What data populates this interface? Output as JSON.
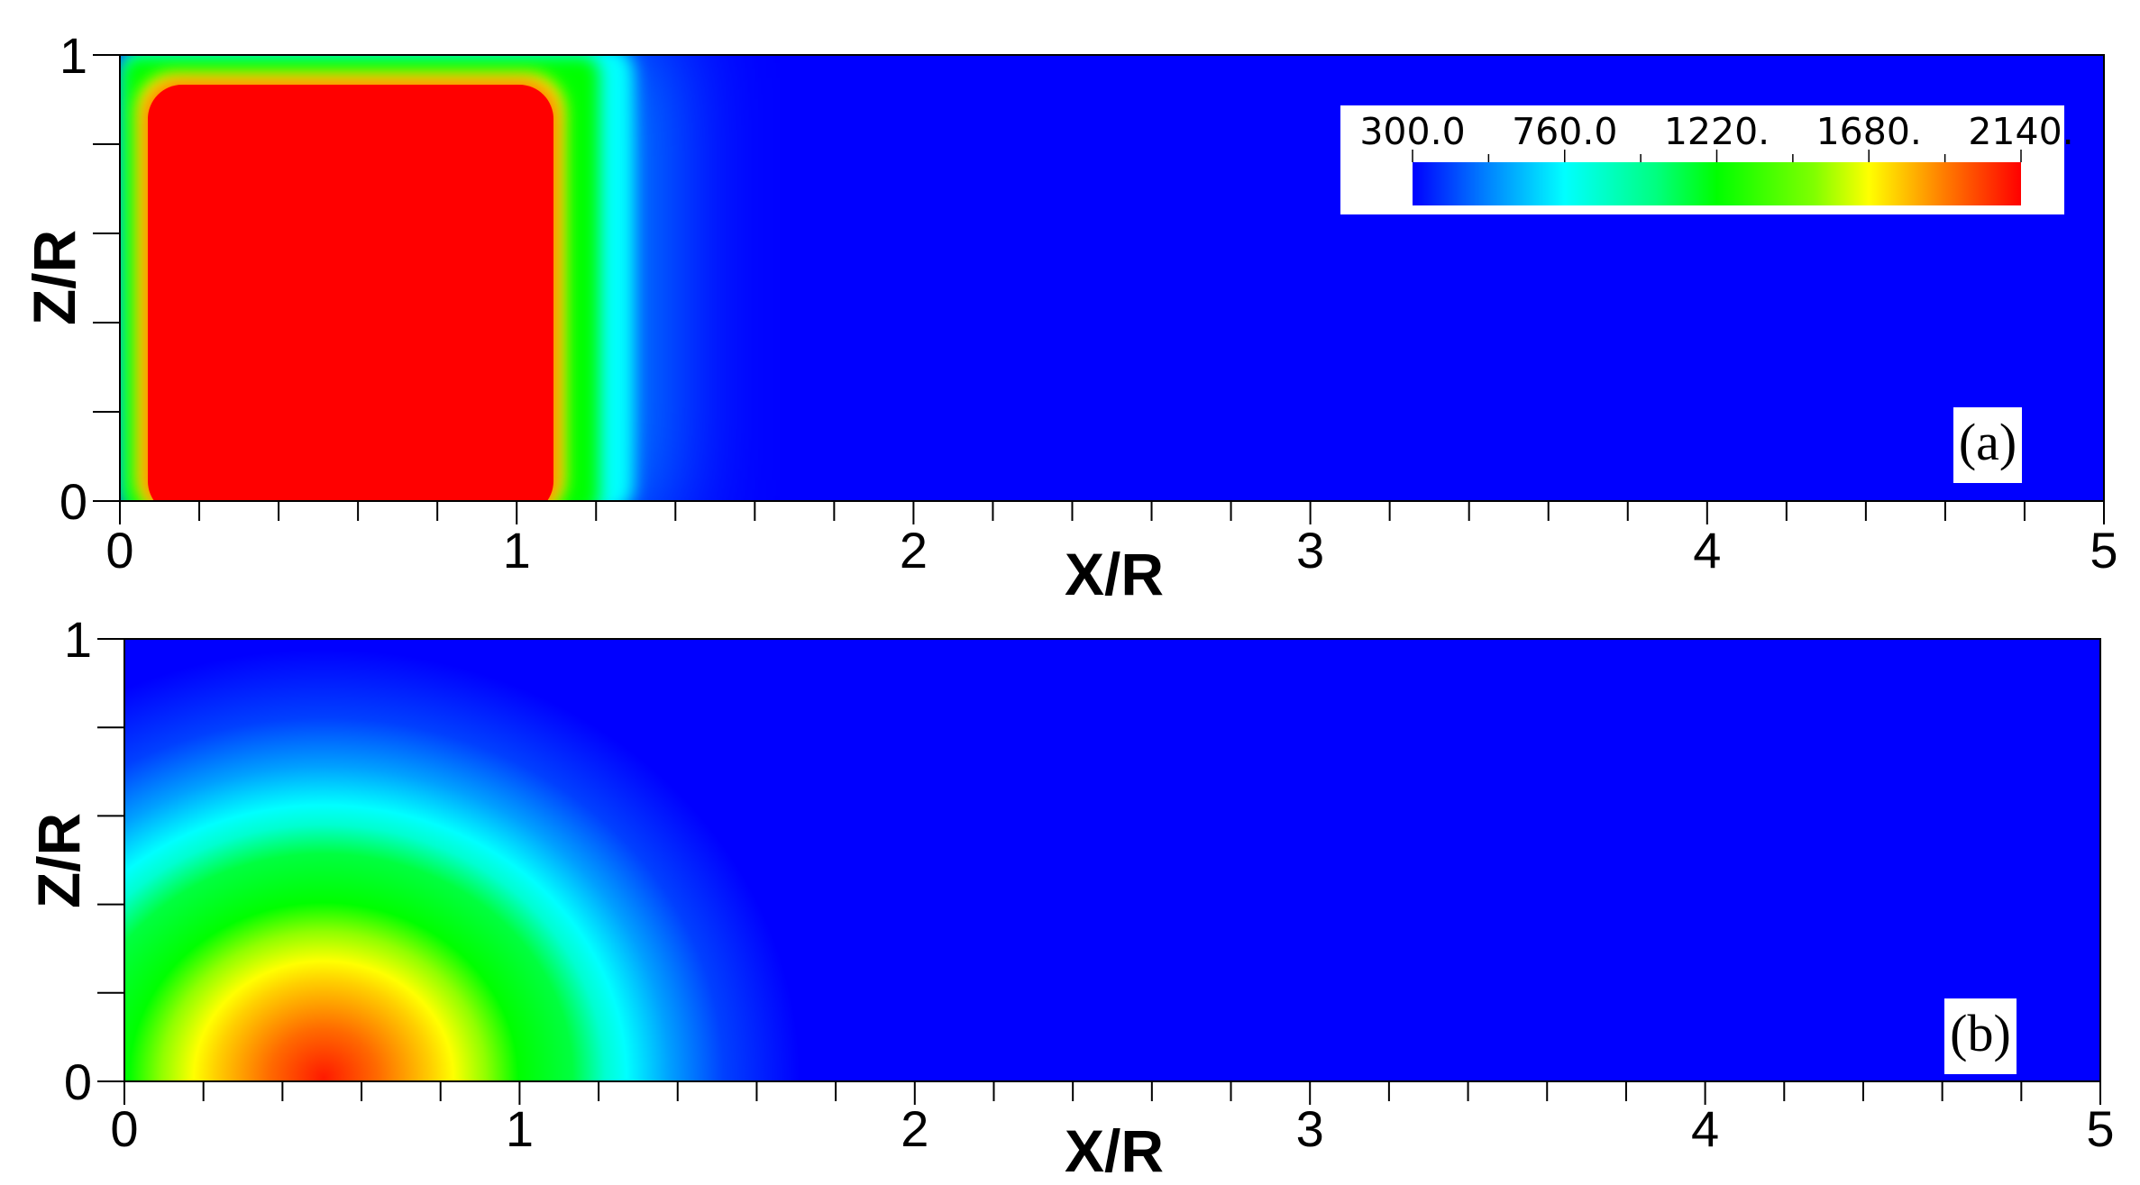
{
  "chart_data": [
    {
      "type": "heatmap",
      "panel_label": "(a)",
      "xlabel": "X/R",
      "ylabel": "Z/R",
      "xlim": [
        0,
        5
      ],
      "ylim": [
        0,
        1
      ],
      "x_ticks": [
        "0",
        "1",
        "2",
        "3",
        "4",
        "5"
      ],
      "y_ticks": [
        "0",
        "1"
      ],
      "colorbar": {
        "labels": [
          "300.0",
          "760.0",
          "1220.",
          "1680.",
          "2140."
        ],
        "values": [
          300,
          760,
          1220,
          1680,
          2140
        ],
        "range": [
          300,
          2140
        ],
        "colors": [
          "#0000ff",
          "#00ffff",
          "#00ff00",
          "#ffff00",
          "#ff0000"
        ],
        "placement": "top-right"
      },
      "field": {
        "description_shape": "rectangular-hot-region",
        "hot_x_range": [
          0.07,
          1.07
        ],
        "hot_z_range": [
          0,
          0.93
        ],
        "hot_value": 2140,
        "ambient_value": 300
      }
    },
    {
      "type": "heatmap",
      "panel_label": "(b)",
      "xlabel": "X/R",
      "ylabel": "Z/R",
      "xlim": [
        0,
        5
      ],
      "ylim": [
        0,
        1
      ],
      "x_ticks": [
        "0",
        "1",
        "2",
        "3",
        "4",
        "5"
      ],
      "y_ticks": [
        "0",
        "1"
      ],
      "field": {
        "description_shape": "elliptical-hot-region",
        "center_x": 0.55,
        "center_z": 0,
        "peak_value": 2000,
        "ambient_value": 300
      }
    }
  ]
}
